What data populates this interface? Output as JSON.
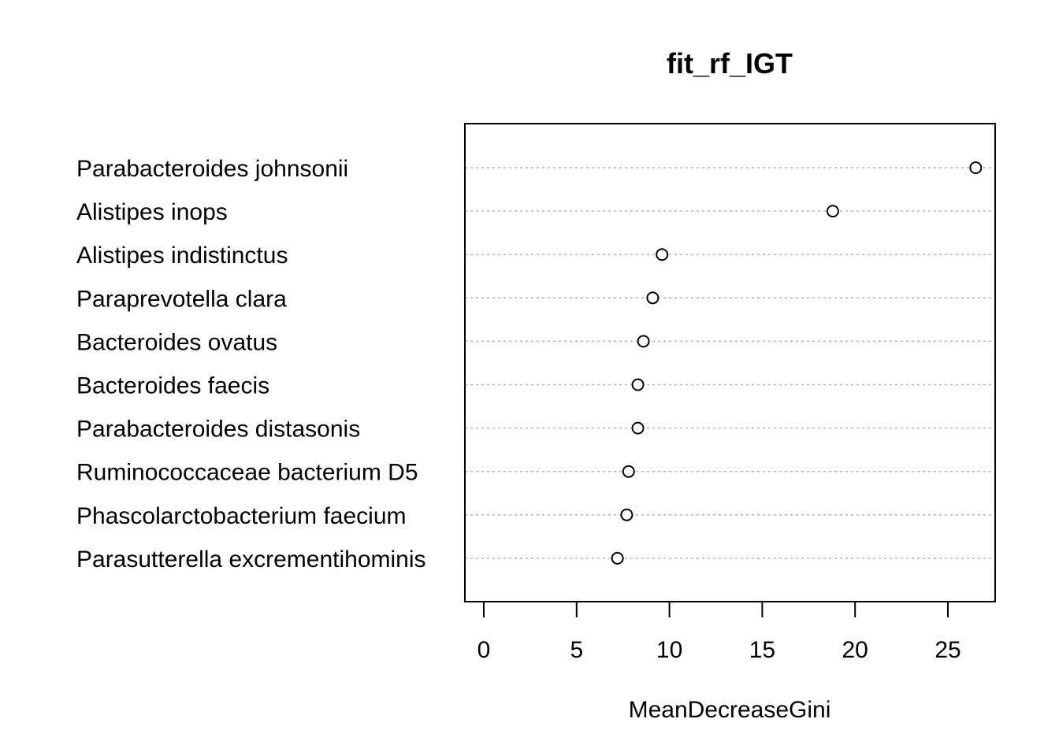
{
  "chart_data": {
    "type": "scatter",
    "title": "fit_rf_IGT",
    "xlabel": "MeanDecreaseGini",
    "ylabel": "",
    "xlim": [
      -1,
      27.6
    ],
    "xticks": [
      0,
      5,
      10,
      15,
      20,
      25
    ],
    "grid": "dotted horizontal guide lines",
    "categories": [
      "Parabacteroides johnsonii",
      "Alistipes inops",
      "Alistipes indistinctus",
      "Paraprevotella clara",
      "Bacteroides ovatus",
      "Bacteroides faecis",
      "Parabacteroides distasonis",
      "Ruminococcaceae bacterium D5",
      "Phascolarctobacterium faecium",
      "Parasutterella excrementihominis"
    ],
    "values": [
      26.5,
      18.8,
      9.6,
      9.1,
      8.6,
      8.3,
      8.3,
      7.8,
      7.7,
      7.2
    ]
  }
}
